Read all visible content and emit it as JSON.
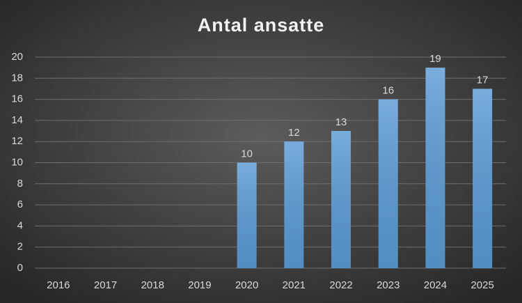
{
  "chart_data": {
    "type": "bar",
    "title": "Antal ansatte",
    "categories": [
      "2016",
      "2017",
      "2018",
      "2019",
      "2020",
      "2021",
      "2022",
      "2023",
      "2024",
      "2025"
    ],
    "values": [
      null,
      null,
      null,
      null,
      10,
      12,
      13,
      16,
      19,
      17
    ],
    "color": "#5b9bd5",
    "ylim": [
      0,
      20
    ],
    "yticks": [
      0,
      2,
      4,
      6,
      8,
      10,
      12,
      14,
      16,
      18,
      20
    ],
    "grid": true
  }
}
